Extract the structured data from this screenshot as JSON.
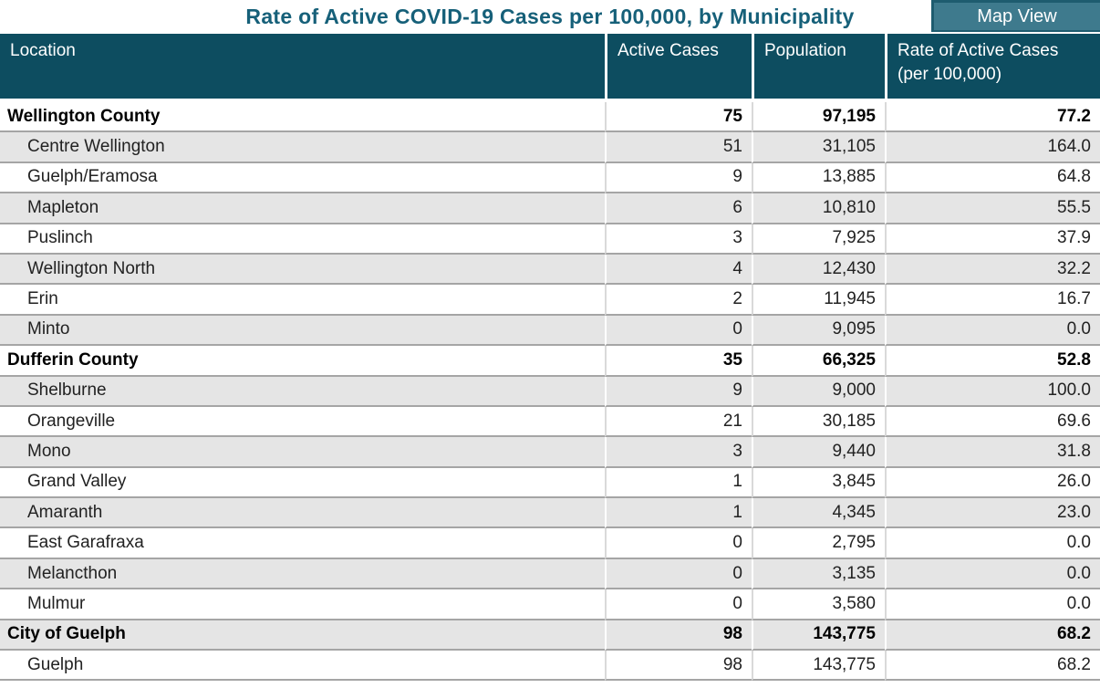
{
  "header": {
    "title": "Rate of Active COVID-19 Cases per 100,000, by Municipality",
    "map_view_label": "Map View"
  },
  "colors": {
    "title_text": "#166079",
    "table_header_bg": "#0d4d60",
    "table_header_text": "#ffffff",
    "map_view_button_bg": "#3e7a8d",
    "map_view_button_border": "#1e5c6f",
    "row_alt_bg": "#e5e5e5",
    "row_border": "#a5a5a5"
  },
  "table": {
    "columns": [
      {
        "id": "location",
        "label": "Location"
      },
      {
        "id": "active_cases",
        "label": "Active Cases"
      },
      {
        "id": "population",
        "label": "Population"
      },
      {
        "id": "rate",
        "label": "Rate of Active Cases (per 100,000)"
      }
    ],
    "rows": [
      {
        "location": "Wellington County",
        "active_cases": "75",
        "population": "97,195",
        "rate": "77.2",
        "level": "section"
      },
      {
        "location": "Centre Wellington",
        "active_cases": "51",
        "population": "31,105",
        "rate": "164.0",
        "level": "sub"
      },
      {
        "location": "Guelph/Eramosa",
        "active_cases": "9",
        "population": "13,885",
        "rate": "64.8",
        "level": "sub"
      },
      {
        "location": "Mapleton",
        "active_cases": "6",
        "population": "10,810",
        "rate": "55.5",
        "level": "sub"
      },
      {
        "location": "Puslinch",
        "active_cases": "3",
        "population": "7,925",
        "rate": "37.9",
        "level": "sub"
      },
      {
        "location": "Wellington North",
        "active_cases": "4",
        "population": "12,430",
        "rate": "32.2",
        "level": "sub"
      },
      {
        "location": "Erin",
        "active_cases": "2",
        "population": "11,945",
        "rate": "16.7",
        "level": "sub"
      },
      {
        "location": "Minto",
        "active_cases": "0",
        "population": "9,095",
        "rate": "0.0",
        "level": "sub"
      },
      {
        "location": "Dufferin County",
        "active_cases": "35",
        "population": "66,325",
        "rate": "52.8",
        "level": "section"
      },
      {
        "location": "Shelburne",
        "active_cases": "9",
        "population": "9,000",
        "rate": "100.0",
        "level": "sub"
      },
      {
        "location": "Orangeville",
        "active_cases": "21",
        "population": "30,185",
        "rate": "69.6",
        "level": "sub"
      },
      {
        "location": "Mono",
        "active_cases": "3",
        "population": "9,440",
        "rate": "31.8",
        "level": "sub"
      },
      {
        "location": "Grand Valley",
        "active_cases": "1",
        "population": "3,845",
        "rate": "26.0",
        "level": "sub"
      },
      {
        "location": "Amaranth",
        "active_cases": "1",
        "population": "4,345",
        "rate": "23.0",
        "level": "sub"
      },
      {
        "location": "East Garafraxa",
        "active_cases": "0",
        "population": "2,795",
        "rate": "0.0",
        "level": "sub"
      },
      {
        "location": "Melancthon",
        "active_cases": "0",
        "population": "3,135",
        "rate": "0.0",
        "level": "sub"
      },
      {
        "location": "Mulmur",
        "active_cases": "0",
        "population": "3,580",
        "rate": "0.0",
        "level": "sub"
      },
      {
        "location": "City of Guelph",
        "active_cases": "98",
        "population": "143,775",
        "rate": "68.2",
        "level": "section"
      },
      {
        "location": "Guelph",
        "active_cases": "98",
        "population": "143,775",
        "rate": "68.2",
        "level": "sub"
      }
    ]
  }
}
